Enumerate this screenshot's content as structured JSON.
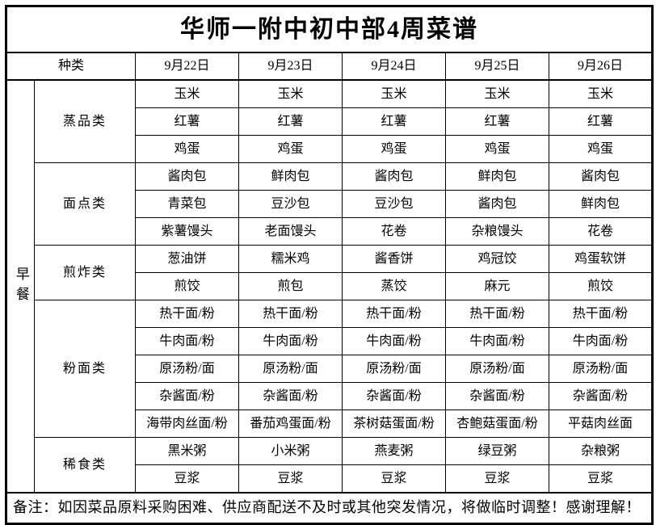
{
  "title": "华师一附中初中部4周菜谱",
  "header": {
    "type_label": "种类",
    "dates": [
      "9月22日",
      "9月23日",
      "9月24日",
      "9月25日",
      "9月26日"
    ]
  },
  "meal_label": "早餐",
  "categories": [
    {
      "name": "蒸品类",
      "rows": [
        [
          "玉米",
          "玉米",
          "玉米",
          "玉米",
          "玉米"
        ],
        [
          "红薯",
          "红薯",
          "红薯",
          "红薯",
          "红薯"
        ],
        [
          "鸡蛋",
          "鸡蛋",
          "鸡蛋",
          "鸡蛋",
          "鸡蛋"
        ]
      ]
    },
    {
      "name": "面点类",
      "rows": [
        [
          "酱肉包",
          "鲜肉包",
          "酱肉包",
          "鲜肉包",
          "酱肉包"
        ],
        [
          "青菜包",
          "豆沙包",
          "豆沙包",
          "酱肉包",
          "鲜肉包"
        ],
        [
          "紫薯馒头",
          "老面馒头",
          "花卷",
          "杂粮馒头",
          "花卷"
        ]
      ]
    },
    {
      "name": "煎炸类",
      "rows": [
        [
          "葱油饼",
          "糯米鸡",
          "酱香饼",
          "鸡冠饺",
          "鸡蛋软饼"
        ],
        [
          "煎饺",
          "煎包",
          "蒸饺",
          "麻元",
          "煎饺"
        ]
      ]
    },
    {
      "name": "粉面类",
      "rows": [
        [
          "热干面/粉",
          "热干面/粉",
          "热干面/粉",
          "热干面/粉",
          "热干面/粉"
        ],
        [
          "牛肉面/粉",
          "牛肉面/粉",
          "牛肉面/粉",
          "牛肉面/粉",
          "牛肉面/粉"
        ],
        [
          "原汤粉/面",
          "原汤粉/面",
          "原汤粉/面",
          "原汤粉/面",
          "原汤粉/面"
        ],
        [
          "杂酱面/粉",
          "杂酱面/粉",
          "杂酱面/粉",
          "杂酱面/粉",
          "杂酱面/粉"
        ],
        [
          "海带肉丝面/粉",
          "番茄鸡蛋面/粉",
          "茶树菇蛋面/粉",
          "杏鲍菇蛋面/粉",
          "平菇肉丝面"
        ]
      ]
    },
    {
      "name": "稀食类",
      "rows": [
        [
          "黑米粥",
          "小米粥",
          "燕麦粥",
          "绿豆粥",
          "杂粮粥"
        ],
        [
          "豆浆",
          "豆浆",
          "豆浆",
          "豆浆",
          "豆浆"
        ]
      ]
    }
  ],
  "note": "备注：如因菜品原料采购困难、供应商配送不及时或其他突发情况，将做临时调整！感谢理解！",
  "colors": {
    "border": "#000000",
    "text": "#000000",
    "background": "#ffffff"
  }
}
